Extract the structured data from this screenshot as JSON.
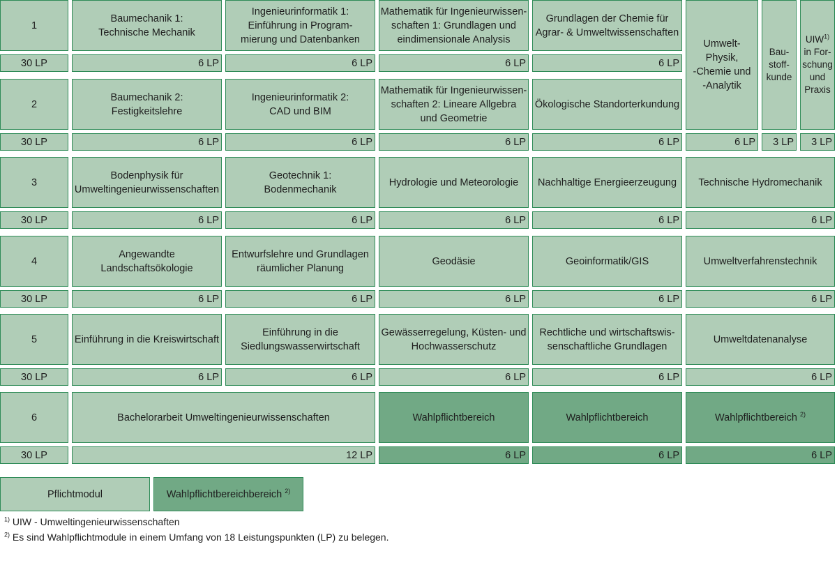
{
  "semesters": [
    {
      "label": "1",
      "credits": "30 LP"
    },
    {
      "label": "2",
      "credits": "30 LP"
    },
    {
      "label": "3",
      "credits": "30 LP"
    },
    {
      "label": "4",
      "credits": "30 LP"
    },
    {
      "label": "5",
      "credits": "30 LP"
    },
    {
      "label": "6",
      "credits": "30 LP"
    }
  ],
  "modules": {
    "s1": [
      {
        "title": "Baumechanik 1:\nTechnische Mechanik",
        "lp": "6 LP"
      },
      {
        "title": "Ingenieurinformatik 1:\nEinführung in Program-\nmierung und Datenbanken",
        "lp": "6 LP"
      },
      {
        "title": "Mathematik für Ingenieurwissen-\nschaften 1: Grundlagen und\neindimensionale Analysis",
        "lp": "6 LP"
      },
      {
        "title": "Grundlagen der Chemie für\nAgrar- & Umweltwissenschaften",
        "lp": "6 LP"
      }
    ],
    "s2": [
      {
        "title": "Baumechanik 2:\nFestigkeitslehre",
        "lp": "6 LP"
      },
      {
        "title": "Ingenieurinformatik 2:\nCAD und BIM",
        "lp": "6 LP"
      },
      {
        "title": "Mathematik für Ingenieurwissen-\nschaften 2: Lineare Allgebra\nund Geometrie",
        "lp": "6 LP"
      },
      {
        "title": "Ökologische Standorterkundung",
        "lp": "6 LP"
      }
    ],
    "spanning": [
      {
        "title": "Umwelt-\nPhysik,\n-Chemie und\n-Analytik",
        "lp": "6 LP"
      },
      {
        "title": "Bau-\nstoff-\nkunde",
        "lp": "3 LP"
      },
      {
        "title_main": "UIW",
        "title_sup": "1)",
        "title_rest": "in For-\nschung\nund\nPraxis",
        "lp": "3 LP"
      }
    ],
    "s3": [
      {
        "title": "Bodenphysik für\nUmweltingenieurwissenschaften",
        "lp": "6 LP"
      },
      {
        "title": "Geotechnik 1:\nBodenmechanik",
        "lp": "6 LP"
      },
      {
        "title": "Hydrologie und Meteorologie",
        "lp": "6 LP"
      },
      {
        "title": "Nachhaltige Energieerzeugung",
        "lp": "6 LP"
      },
      {
        "title": "Technische Hydromechanik",
        "lp": "6 LP"
      }
    ],
    "s4": [
      {
        "title": "Angewandte\nLandschaftsökologie",
        "lp": "6 LP"
      },
      {
        "title": "Entwurfslehre und Grundlagen\nräumlicher Planung",
        "lp": "6 LP"
      },
      {
        "title": "Geodäsie",
        "lp": "6 LP"
      },
      {
        "title": "Geoinformatik/GIS",
        "lp": "6 LP"
      },
      {
        "title": "Umweltverfahrenstechnik",
        "lp": "6 LP"
      }
    ],
    "s5": [
      {
        "title": "Einführung in die Kreiswirtschaft",
        "lp": "6 LP"
      },
      {
        "title": "Einführung in die\nSiedlungswasserwirtschaft",
        "lp": "6 LP"
      },
      {
        "title": "Gewässerregelung, Küsten- und\nHochwasserschutz",
        "lp": "6 LP"
      },
      {
        "title": "Rechtliche und wirtschaftswis-\nsenschaftliche Grundlagen",
        "lp": "6 LP"
      },
      {
        "title": "Umweltdatenanalyse",
        "lp": "6 LP"
      }
    ],
    "s6": [
      {
        "title": "Bachelorarbeit Umweltingenieurwissenschaften",
        "lp": "12 LP"
      },
      {
        "title": "Wahlpflichtbereich",
        "lp": "6 LP"
      },
      {
        "title": "Wahlpflichtbereich",
        "lp": "6 LP"
      },
      {
        "title": "Wahlpflichtbereich",
        "sup": "2)",
        "lp": "6 LP"
      }
    ]
  },
  "legend": {
    "mandatory": "Pflichtmodul",
    "elective": "Wahlpflichtbereichbereich",
    "elective_sup": "2)"
  },
  "footnotes": [
    {
      "mark": "1)",
      "text": "UIW - Umweltingenieurwissenschaften"
    },
    {
      "mark": "2)",
      "text": "Es sind Wahlpflichtmodule in einem Umfang von 18 Leistungspunkten (LP) zu belegen."
    }
  ],
  "colors": {
    "mandatory": "#b0cdb7",
    "elective": "#71a985",
    "border": "#2e8b57"
  }
}
